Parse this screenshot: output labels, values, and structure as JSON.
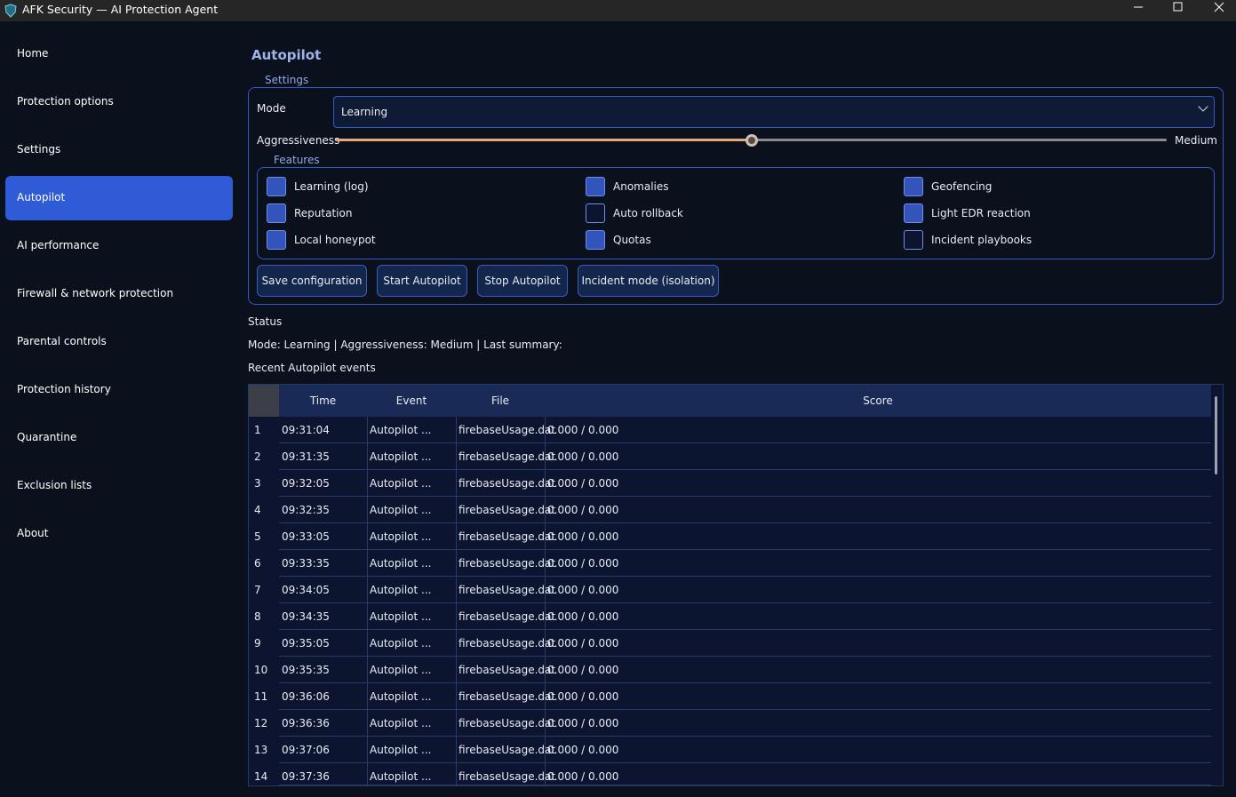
{
  "window": {
    "title": "AFK Security — AI Protection Agent"
  },
  "sidebar": {
    "items": [
      "Home",
      "Protection options",
      "Settings",
      "Autopilot",
      "AI performance",
      "Firewall & network protection",
      "Parental controls",
      "Protection history",
      "Quarantine",
      "Exclusion lists",
      "About"
    ],
    "active": 3
  },
  "page": {
    "title": "Autopilot",
    "settings": {
      "legend": "Settings",
      "mode_label": "Mode",
      "mode_value": "Learning",
      "aggressiveness_label": "Aggressiveness",
      "aggressiveness_value": "Medium",
      "features_legend": "Features",
      "features": [
        {
          "label": "Learning (log)",
          "checked": true
        },
        {
          "label": "Anomalies",
          "checked": true
        },
        {
          "label": "Geofencing",
          "checked": true
        },
        {
          "label": "Reputation",
          "checked": true
        },
        {
          "label": "Auto rollback",
          "checked": false
        },
        {
          "label": "Light EDR reaction",
          "checked": true
        },
        {
          "label": "Local honeypot",
          "checked": true
        },
        {
          "label": "Quotas",
          "checked": true
        },
        {
          "label": "Incident playbooks",
          "checked": false
        }
      ],
      "buttons": [
        "Save configuration",
        "Start Autopilot",
        "Stop Autopilot",
        "Incident mode (isolation)"
      ]
    },
    "status_label": "Status",
    "status_text": "Mode: Learning | Aggressiveness: Medium | Last summary:",
    "events_label": "Recent Autopilot events",
    "table": {
      "columns": [
        "Time",
        "Event",
        "File",
        "Score"
      ],
      "rows": [
        [
          1,
          "09:31:04",
          "Autopilot ...",
          "firebaseUsage.dat",
          "0.000 / 0.000"
        ],
        [
          2,
          "09:31:35",
          "Autopilot ...",
          "firebaseUsage.dat",
          "0.000 / 0.000"
        ],
        [
          3,
          "09:32:05",
          "Autopilot ...",
          "firebaseUsage.dat",
          "0.000 / 0.000"
        ],
        [
          4,
          "09:32:35",
          "Autopilot ...",
          "firebaseUsage.dat",
          "0.000 / 0.000"
        ],
        [
          5,
          "09:33:05",
          "Autopilot ...",
          "firebaseUsage.dat",
          "0.000 / 0.000"
        ],
        [
          6,
          "09:33:35",
          "Autopilot ...",
          "firebaseUsage.dat",
          "0.000 / 0.000"
        ],
        [
          7,
          "09:34:05",
          "Autopilot ...",
          "firebaseUsage.dat",
          "0.000 / 0.000"
        ],
        [
          8,
          "09:34:35",
          "Autopilot ...",
          "firebaseUsage.dat",
          "0.000 / 0.000"
        ],
        [
          9,
          "09:35:05",
          "Autopilot ...",
          "firebaseUsage.dat",
          "0.000 / 0.000"
        ],
        [
          10,
          "09:35:35",
          "Autopilot ...",
          "firebaseUsage.dat",
          "0.000 / 0.000"
        ],
        [
          11,
          "09:36:06",
          "Autopilot ...",
          "firebaseUsage.dat",
          "0.000 / 0.000"
        ],
        [
          12,
          "09:36:36",
          "Autopilot ...",
          "firebaseUsage.dat",
          "0.000 / 0.000"
        ],
        [
          13,
          "09:37:06",
          "Autopilot ...",
          "firebaseUsage.dat",
          "0.000 / 0.000"
        ],
        [
          14,
          "09:37:36",
          "Autopilot ...",
          "firebaseUsage.dat",
          "0.000 / 0.000"
        ]
      ]
    }
  }
}
